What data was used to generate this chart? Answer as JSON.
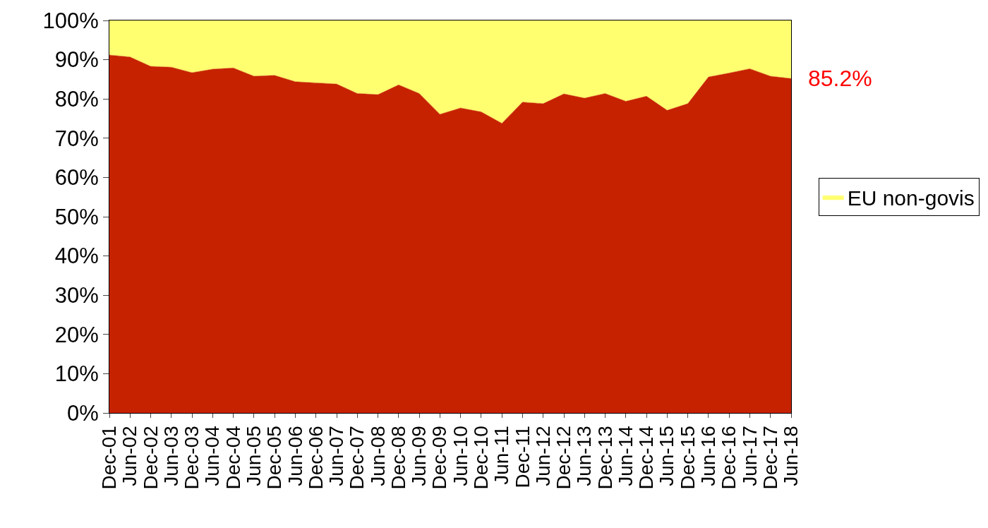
{
  "chart_data": {
    "type": "area",
    "stacked": true,
    "categories": [
      "Dec-01",
      "Jun-02",
      "Dec-02",
      "Jun-03",
      "Dec-03",
      "Jun-04",
      "Dec-04",
      "Jun-05",
      "Dec-05",
      "Jun-06",
      "Dec-06",
      "Jun-07",
      "Dec-07",
      "Jun-08",
      "Dec-08",
      "Jun-09",
      "Dec-09",
      "Jun-10",
      "Dec-10",
      "Jun-11",
      "Dec-11",
      "Jun-12",
      "Dec-12",
      "Jun-13",
      "Dec-13",
      "Jun-14",
      "Dec-14",
      "Jun-15",
      "Dec-15",
      "Jun-16",
      "Dec-16",
      "Jun-17",
      "Dec-17",
      "Jun-18"
    ],
    "series": [
      {
        "color": "#c62200",
        "values": [
          91.2,
          90.7,
          88.3,
          88.1,
          86.7,
          87.6,
          87.9,
          85.8,
          86.0,
          84.4,
          84.1,
          83.8,
          81.4,
          81.1,
          83.6,
          81.4,
          76.1,
          77.7,
          76.7,
          73.8,
          79.2,
          78.8,
          81.3,
          80.2,
          81.4,
          79.4,
          80.7,
          77.1,
          78.8,
          85.6,
          86.6,
          87.7,
          85.8,
          85.2
        ],
        "value_labels": [
          null,
          null,
          null,
          null,
          null,
          null,
          null,
          null,
          null,
          null,
          null,
          null,
          null,
          null,
          null,
          null,
          null,
          null,
          null,
          null,
          null,
          null,
          null,
          null,
          null,
          null,
          null,
          null,
          null,
          null,
          null,
          null,
          null,
          "85.2%"
        ]
      },
      {
        "name": "EU non-govis",
        "color": "#ffff70",
        "values": [
          8.8,
          9.3,
          11.7,
          11.9,
          13.3,
          12.4,
          12.1,
          14.2,
          14.0,
          15.6,
          15.9,
          16.2,
          18.6,
          18.9,
          16.4,
          18.6,
          23.9,
          22.3,
          23.3,
          26.2,
          20.8,
          21.2,
          18.7,
          19.8,
          18.6,
          20.6,
          19.3,
          22.9,
          21.2,
          14.4,
          13.4,
          12.3,
          14.2,
          14.8
        ]
      }
    ],
    "ylim": [
      0,
      100
    ],
    "yticks": [
      {
        "value": 0,
        "label": "0%"
      },
      {
        "value": 10,
        "label": "10%"
      },
      {
        "value": 20,
        "label": "20%"
      },
      {
        "value": 30,
        "label": "30%"
      },
      {
        "value": 40,
        "label": "40%"
      },
      {
        "value": 50,
        "label": "50%"
      },
      {
        "value": 60,
        "label": "60%"
      },
      {
        "value": 70,
        "label": "70%"
      },
      {
        "value": 80,
        "label": "80%"
      },
      {
        "value": 90,
        "label": "90%"
      },
      {
        "value": 100,
        "label": "100%"
      }
    ],
    "legend": "right"
  }
}
